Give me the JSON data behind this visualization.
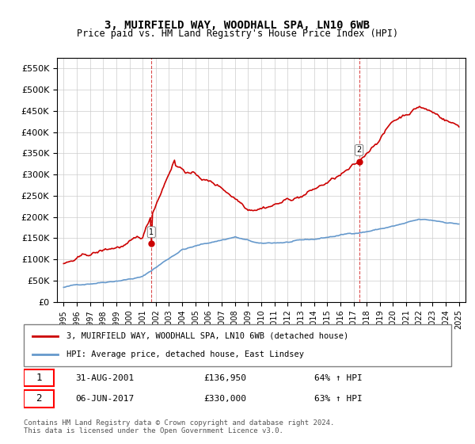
{
  "title": "3, MUIRFIELD WAY, WOODHALL SPA, LN10 6WB",
  "subtitle": "Price paid vs. HM Land Registry's House Price Index (HPI)",
  "ylabel_ticks": [
    "£0",
    "£50K",
    "£100K",
    "£150K",
    "£200K",
    "£250K",
    "£300K",
    "£350K",
    "£400K",
    "£450K",
    "£500K",
    "£550K"
  ],
  "ytick_values": [
    0,
    50000,
    100000,
    150000,
    200000,
    250000,
    300000,
    350000,
    400000,
    450000,
    500000,
    550000
  ],
  "ylim": [
    0,
    575000
  ],
  "purchase1": {
    "date_num": 2001.667,
    "price": 136950,
    "label": "1",
    "date_str": "31-AUG-2001",
    "price_str": "£136,950",
    "hpi_str": "64% ↑ HPI"
  },
  "purchase2": {
    "date_num": 2017.43,
    "price": 330000,
    "label": "2",
    "date_str": "06-JUN-2017",
    "price_str": "£330,000",
    "hpi_str": "63% ↑ HPI"
  },
  "legend_line1": "3, MUIRFIELD WAY, WOODHALL SPA, LN10 6WB (detached house)",
  "legend_line2": "HPI: Average price, detached house, East Lindsey",
  "footer1": "Contains HM Land Registry data © Crown copyright and database right 2024.",
  "footer2": "This data is licensed under the Open Government Licence v3.0.",
  "line_color_red": "#cc0000",
  "line_color_blue": "#6699cc",
  "background_color": "#ffffff",
  "grid_color": "#cccccc",
  "vline_color": "#cc0000",
  "xlabel_years": [
    "1995",
    "1996",
    "1997",
    "1998",
    "1999",
    "2000",
    "2001",
    "2002",
    "2003",
    "2004",
    "2005",
    "2006",
    "2007",
    "2008",
    "2009",
    "2010",
    "2011",
    "2012",
    "2013",
    "2014",
    "2015",
    "2016",
    "2017",
    "2018",
    "2019",
    "2020",
    "2021",
    "2022",
    "2023",
    "2024",
    "2025"
  ],
  "xlim": [
    1994.5,
    2025.5
  ]
}
